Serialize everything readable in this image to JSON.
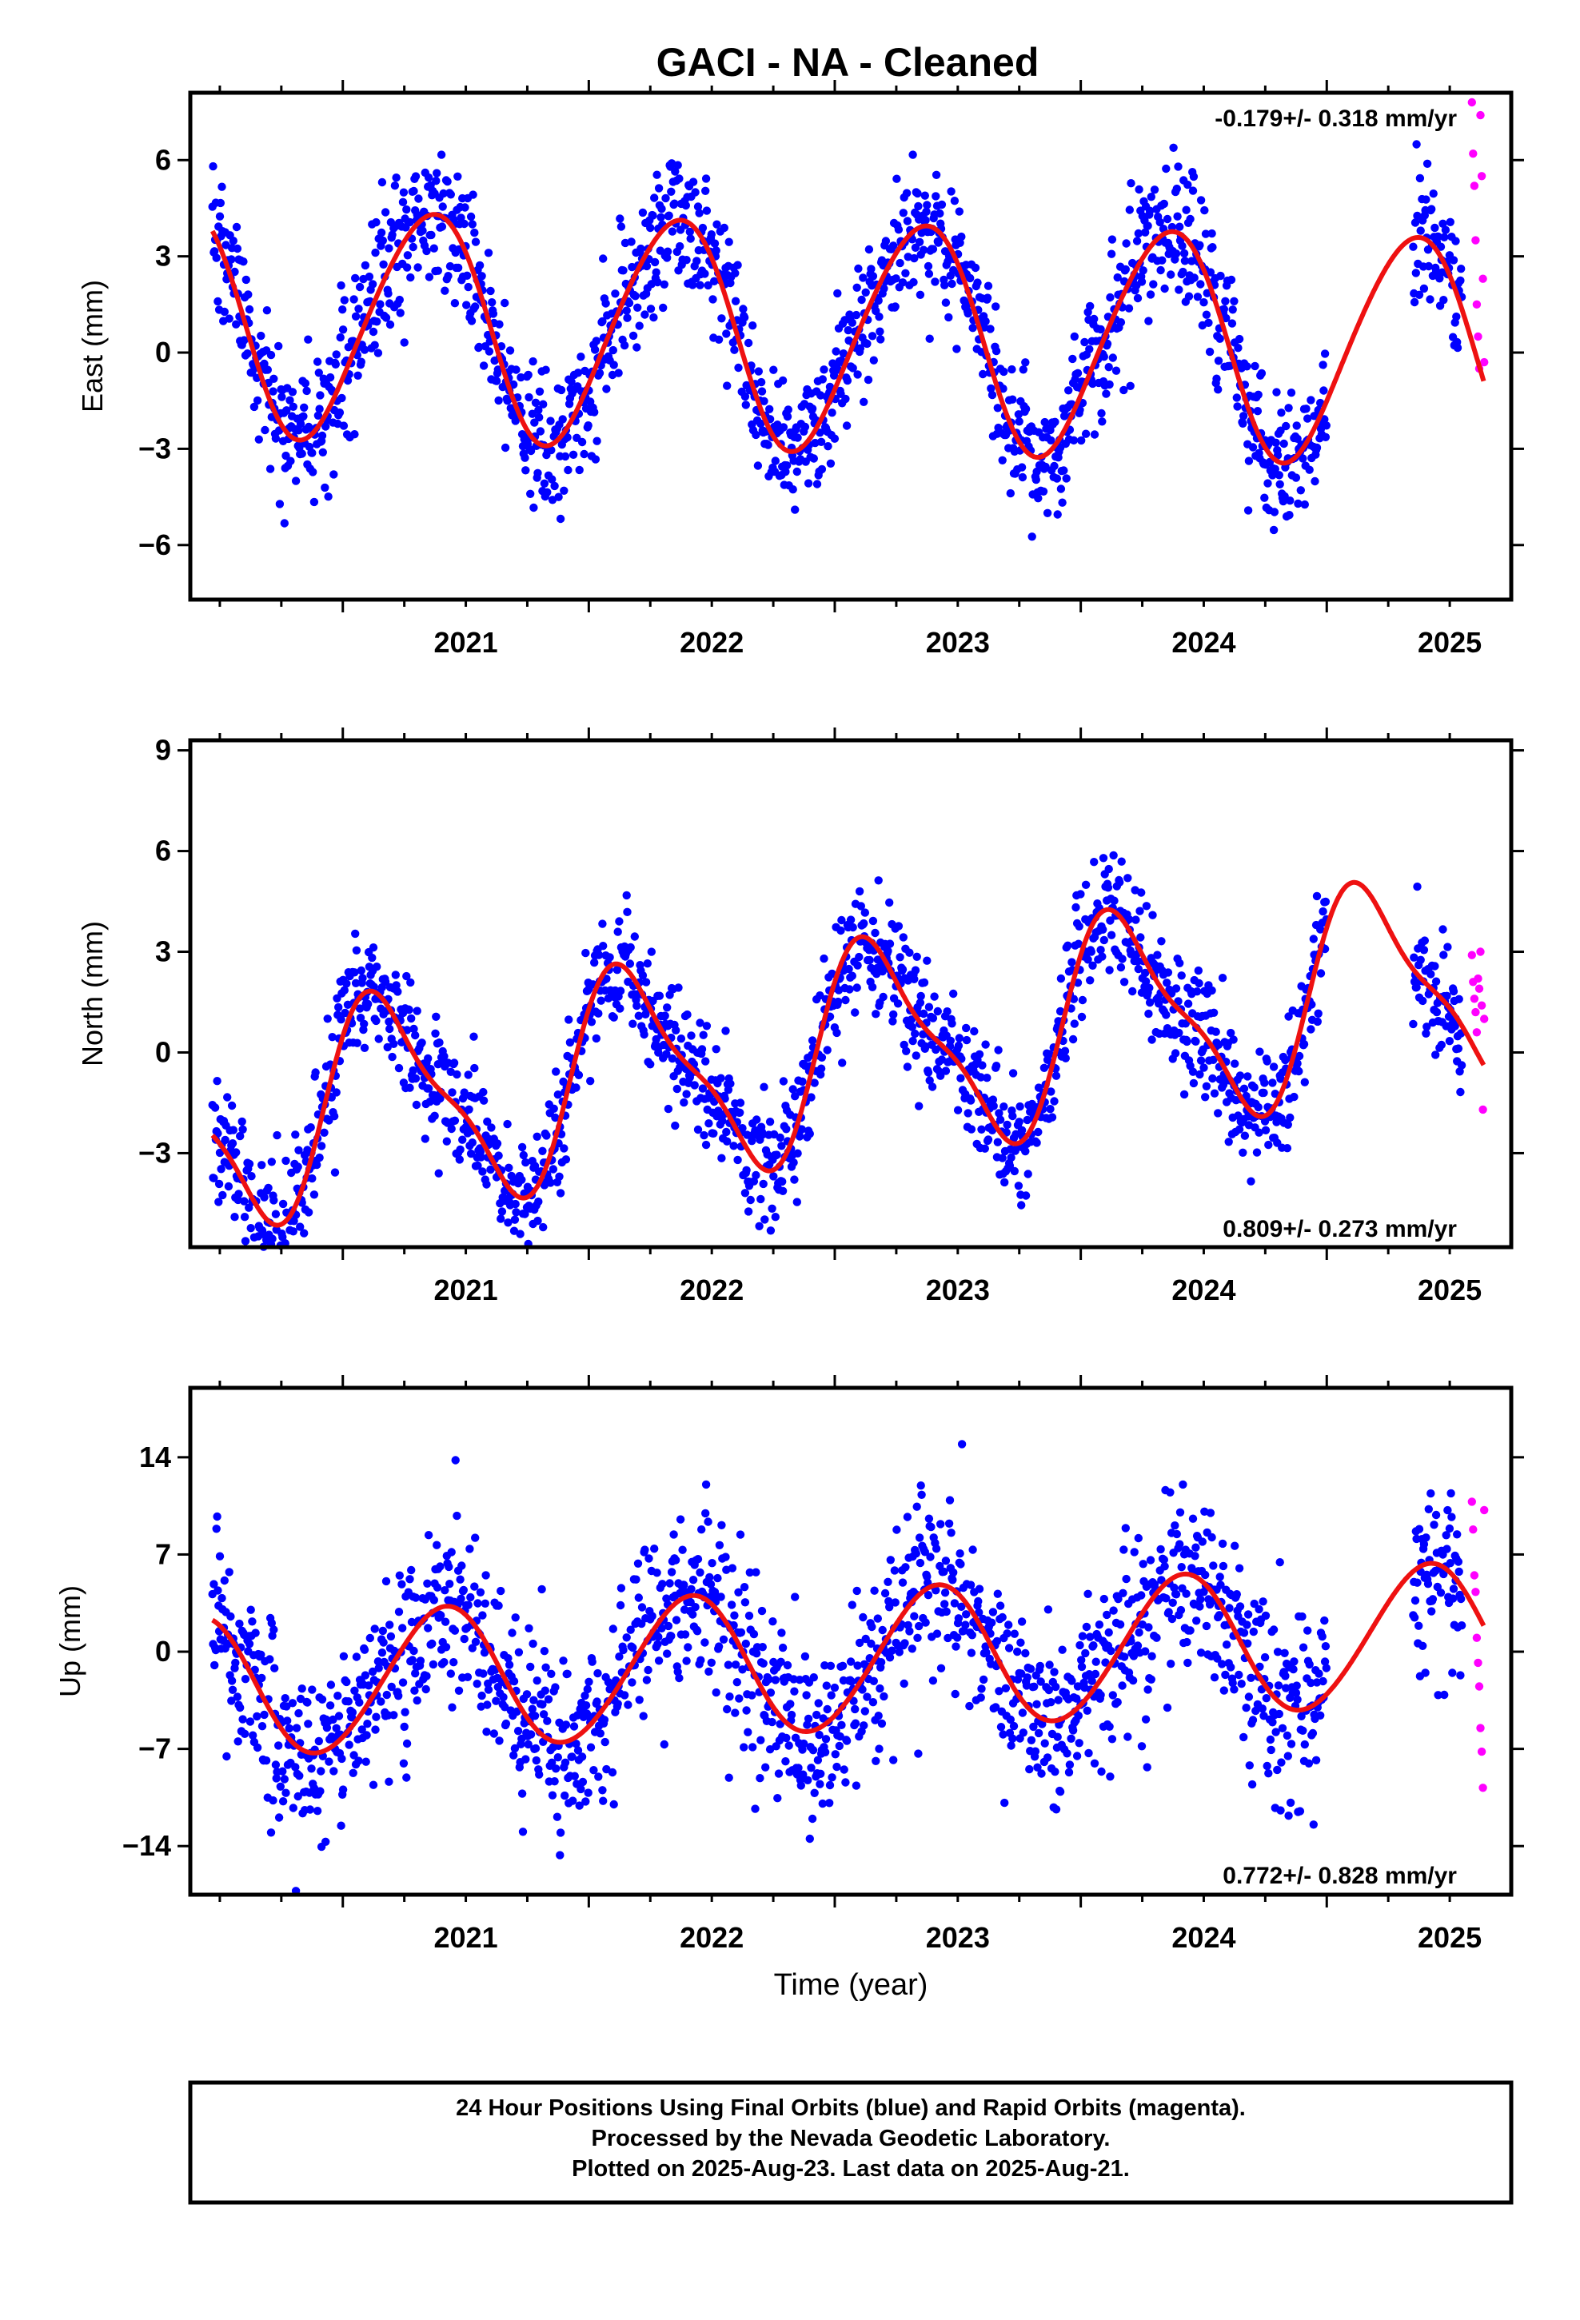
{
  "title": "GACI  - NA - Cleaned",
  "xlabel": "Time (year)",
  "footer": {
    "line1": "24 Hour Positions Using Final Orbits (blue) and Rapid Orbits (magenta).",
    "line2": "Processed by the Nevada Geodetic Laboratory.",
    "line3": "Plotted on 2025-Aug-23. Last data on 2025-Aug-21."
  },
  "colors": {
    "final": "#0000ff",
    "rapid": "#ff00ff",
    "model": "#ee1111",
    "frame": "#000000"
  },
  "chart_data": [
    {
      "type": "scatter",
      "ylabel": "East (mm)",
      "rate": "-0.179+/- 0.318 mm/yr",
      "rate_position": "top-right",
      "xlim": [
        2020.38,
        2025.75
      ],
      "ylim": [
        -7.7,
        8.1
      ],
      "xticks": [
        "2021",
        "2022",
        "2023",
        "2024",
        "2025"
      ],
      "yticks": [
        -6,
        -3,
        0,
        3,
        6
      ],
      "yticklabels": [
        "−6",
        "−3",
        "0",
        "3",
        "6"
      ],
      "model": {
        "offset": 0.55,
        "trend": -0.179,
        "annual_sin": 2.9,
        "annual_cos": -2.0,
        "semiannual_sin": 0.0,
        "semiannual_cos": 0.3,
        "pivot": 2023.0
      },
      "series": [
        {
          "name": "Final Orbits (blue)",
          "x_start": 2020.47,
          "x_end": 2025.55,
          "scatter_sd": 1.1,
          "gaps": [
            [
              2025.0,
              2025.35
            ]
          ]
        },
        {
          "name": "Rapid Orbits (magenta)",
          "x_start": 2025.59,
          "x_end": 2025.64,
          "points": [
            [
              2025.59,
              7.8
            ],
            [
              2025.595,
              6.2
            ],
            [
              2025.6,
              5.2
            ],
            [
              2025.605,
              3.5
            ],
            [
              2025.61,
              1.5
            ],
            [
              2025.615,
              0.5
            ],
            [
              2025.62,
              -0.5
            ],
            [
              2025.625,
              7.4
            ],
            [
              2025.63,
              5.5
            ],
            [
              2025.635,
              2.3
            ],
            [
              2025.64,
              -0.3
            ]
          ]
        }
      ]
    },
    {
      "type": "scatter",
      "ylabel": "North (mm)",
      "rate": "0.809+/- 0.273 mm/yr",
      "rate_position": "bottom-right",
      "xlim": [
        2020.38,
        2025.75
      ],
      "ylim": [
        -5.8,
        9.3
      ],
      "xticks": [
        "2021",
        "2022",
        "2023",
        "2024",
        "2025"
      ],
      "yticks": [
        -3,
        0,
        3,
        6,
        9
      ],
      "yticklabels": [
        "−3",
        "0",
        "3",
        "6",
        "9"
      ],
      "model": {
        "offset": 0.0,
        "trend": 0.809,
        "annual_sin": 2.6,
        "annual_cos": 1.4,
        "semiannual_sin": 0.5,
        "semiannual_cos": 0.7,
        "pivot": 2023.0
      },
      "series": [
        {
          "name": "Final Orbits (blue)",
          "x_start": 2020.47,
          "x_end": 2025.55,
          "scatter_sd": 0.9,
          "gaps": [
            [
              2025.0,
              2025.35
            ]
          ]
        },
        {
          "name": "Rapid Orbits (magenta)",
          "x_start": 2025.59,
          "x_end": 2025.64,
          "points": [
            [
              2025.59,
              2.9
            ],
            [
              2025.595,
              2.1
            ],
            [
              2025.6,
              1.6
            ],
            [
              2025.605,
              1.2
            ],
            [
              2025.61,
              0.6
            ],
            [
              2025.615,
              2.2
            ],
            [
              2025.62,
              1.9
            ],
            [
              2025.625,
              3.0
            ],
            [
              2025.63,
              1.4
            ],
            [
              2025.635,
              -1.7
            ],
            [
              2025.64,
              1.0
            ]
          ]
        }
      ]
    },
    {
      "type": "scatter",
      "ylabel": "Up (mm)",
      "rate": "0.772+/- 0.828 mm/yr",
      "rate_position": "bottom-right",
      "xlim": [
        2020.38,
        2025.75
      ],
      "ylim": [
        -17.5,
        19.0
      ],
      "xticks": [
        "2021",
        "2022",
        "2023",
        "2024",
        "2025"
      ],
      "yticks": [
        -14,
        -7,
        0,
        7,
        14
      ],
      "yticklabels": [
        "−14",
        "−7",
        "0",
        "7",
        "14"
      ],
      "model": {
        "offset": -0.7,
        "trend": 0.772,
        "annual_sin": 2.8,
        "annual_cos": -4.2,
        "semiannual_sin": 0.0,
        "semiannual_cos": 0.3,
        "pivot": 2023.0
      },
      "series": [
        {
          "name": "Final Orbits (blue)",
          "x_start": 2020.47,
          "x_end": 2025.55,
          "scatter_sd": 3.3,
          "gaps": [
            [
              2025.0,
              2025.35
            ]
          ]
        },
        {
          "name": "Rapid Orbits (magenta)",
          "x_start": 2025.59,
          "x_end": 2025.64,
          "points": [
            [
              2025.59,
              10.8
            ],
            [
              2025.595,
              8.8
            ],
            [
              2025.6,
              5.5
            ],
            [
              2025.605,
              4.3
            ],
            [
              2025.61,
              1.0
            ],
            [
              2025.615,
              -0.8
            ],
            [
              2025.62,
              -2.5
            ],
            [
              2025.625,
              -5.5
            ],
            [
              2025.63,
              -7.2
            ],
            [
              2025.635,
              -9.8
            ],
            [
              2025.64,
              10.2
            ]
          ]
        }
      ]
    }
  ]
}
